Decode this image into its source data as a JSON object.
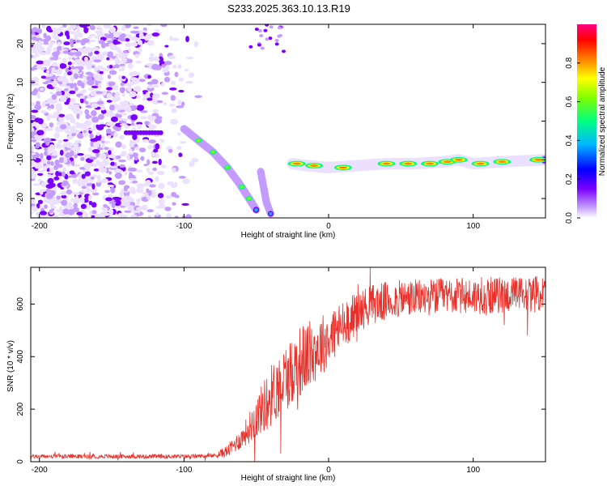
{
  "title": "S233.2025.363.10.13.R19",
  "colors": {
    "background": "#ffffff",
    "axis": "#000000",
    "snr_line": "#e8312a"
  },
  "chart_data": [
    {
      "type": "heatmap",
      "name": "spectrogram",
      "xlabel": "Height of straight line (km)",
      "ylabel": "Frequency (Hz)",
      "xlim": [
        -206,
        150
      ],
      "ylim": [
        -25,
        25
      ],
      "xticks": [
        -200,
        -100,
        0,
        100
      ],
      "yticks": [
        -20,
        -10,
        0,
        10,
        20
      ],
      "colorbar": {
        "label": "Normalized spectral amplitude",
        "range": [
          0,
          1
        ],
        "ticks": [
          "0.0",
          "0.2",
          "0.4",
          "0.6",
          "0.8"
        ],
        "palette": [
          "#ffffff",
          "#c090ff",
          "#6a00ff",
          "#0000ff",
          "#00c8ff",
          "#00ff80",
          "#80ff00",
          "#ffff00",
          "#ff8000",
          "#ff0000",
          "#ff0080"
        ]
      },
      "features": {
        "descending_branch": [
          [
            -100,
            -2
          ],
          [
            -90,
            -5
          ],
          [
            -80,
            -8
          ],
          [
            -70,
            -12
          ],
          [
            -62,
            -16
          ],
          [
            -55,
            -20
          ],
          [
            -50,
            -23
          ]
        ],
        "secondary_branch": [
          [
            -47,
            -13
          ],
          [
            -45,
            -17
          ],
          [
            -43,
            -21
          ],
          [
            -40,
            -24
          ]
        ],
        "tone_track": [
          [
            -25,
            -11
          ],
          [
            -15,
            -11.5
          ],
          [
            0,
            -12
          ],
          [
            20,
            -11.5
          ],
          [
            40,
            -11
          ],
          [
            60,
            -11
          ],
          [
            80,
            -10.5
          ],
          [
            90,
            -10
          ],
          [
            100,
            -11
          ],
          [
            120,
            -10.5
          ],
          [
            150,
            -10
          ]
        ],
        "noise_region_x": [
          -206,
          -85
        ]
      }
    },
    {
      "type": "line",
      "name": "snr",
      "xlabel": "Height of straight line (km)",
      "ylabel": "SNR (10 * v/v)",
      "xlim": [
        -206,
        150
      ],
      "ylim": [
        0,
        740
      ],
      "xticks": [
        -200,
        -100,
        0,
        100
      ],
      "yticks": [
        0,
        200,
        400,
        600
      ],
      "trend": [
        [
          -206,
          20
        ],
        [
          -100,
          20
        ],
        [
          -80,
          22
        ],
        [
          -70,
          40
        ],
        [
          -60,
          90
        ],
        [
          -50,
          170
        ],
        [
          -40,
          250
        ],
        [
          -30,
          320
        ],
        [
          -20,
          380
        ],
        [
          -10,
          420
        ],
        [
          0,
          470
        ],
        [
          10,
          520
        ],
        [
          20,
          570
        ],
        [
          30,
          600
        ],
        [
          50,
          620
        ],
        [
          80,
          630
        ],
        [
          100,
          630
        ],
        [
          150,
          640
        ]
      ],
      "noise_amplitude": [
        [
          -206,
          8
        ],
        [
          -80,
          8
        ],
        [
          -60,
          40
        ],
        [
          -40,
          120
        ],
        [
          -20,
          140
        ],
        [
          0,
          110
        ],
        [
          20,
          80
        ],
        [
          60,
          70
        ],
        [
          150,
          70
        ]
      ]
    }
  ]
}
